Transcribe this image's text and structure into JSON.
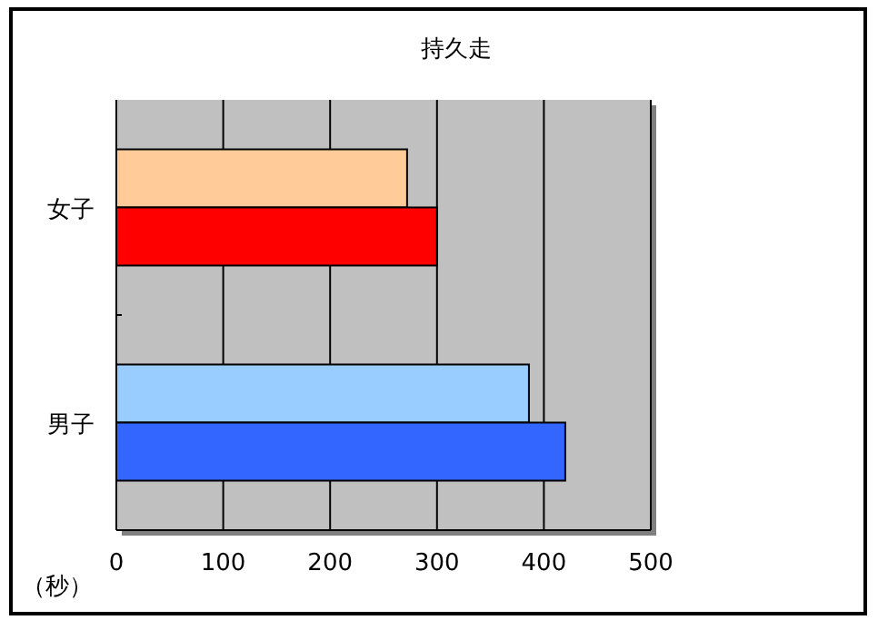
{
  "chart_data": {
    "type": "bar",
    "orientation": "horizontal",
    "title": "持久走",
    "xlabel": "（秒）",
    "categories": [
      "女子",
      "男子"
    ],
    "series": [
      {
        "colors": [
          "#ffcc99",
          "#99ccff"
        ],
        "values": [
          272,
          386
        ]
      },
      {
        "colors": [
          "#ff0000",
          "#3366ff"
        ],
        "values": [
          300,
          420
        ]
      }
    ],
    "xlim": [
      0,
      500
    ],
    "xticks": [
      0,
      100,
      200,
      300,
      400,
      500
    ],
    "grid": "x"
  }
}
